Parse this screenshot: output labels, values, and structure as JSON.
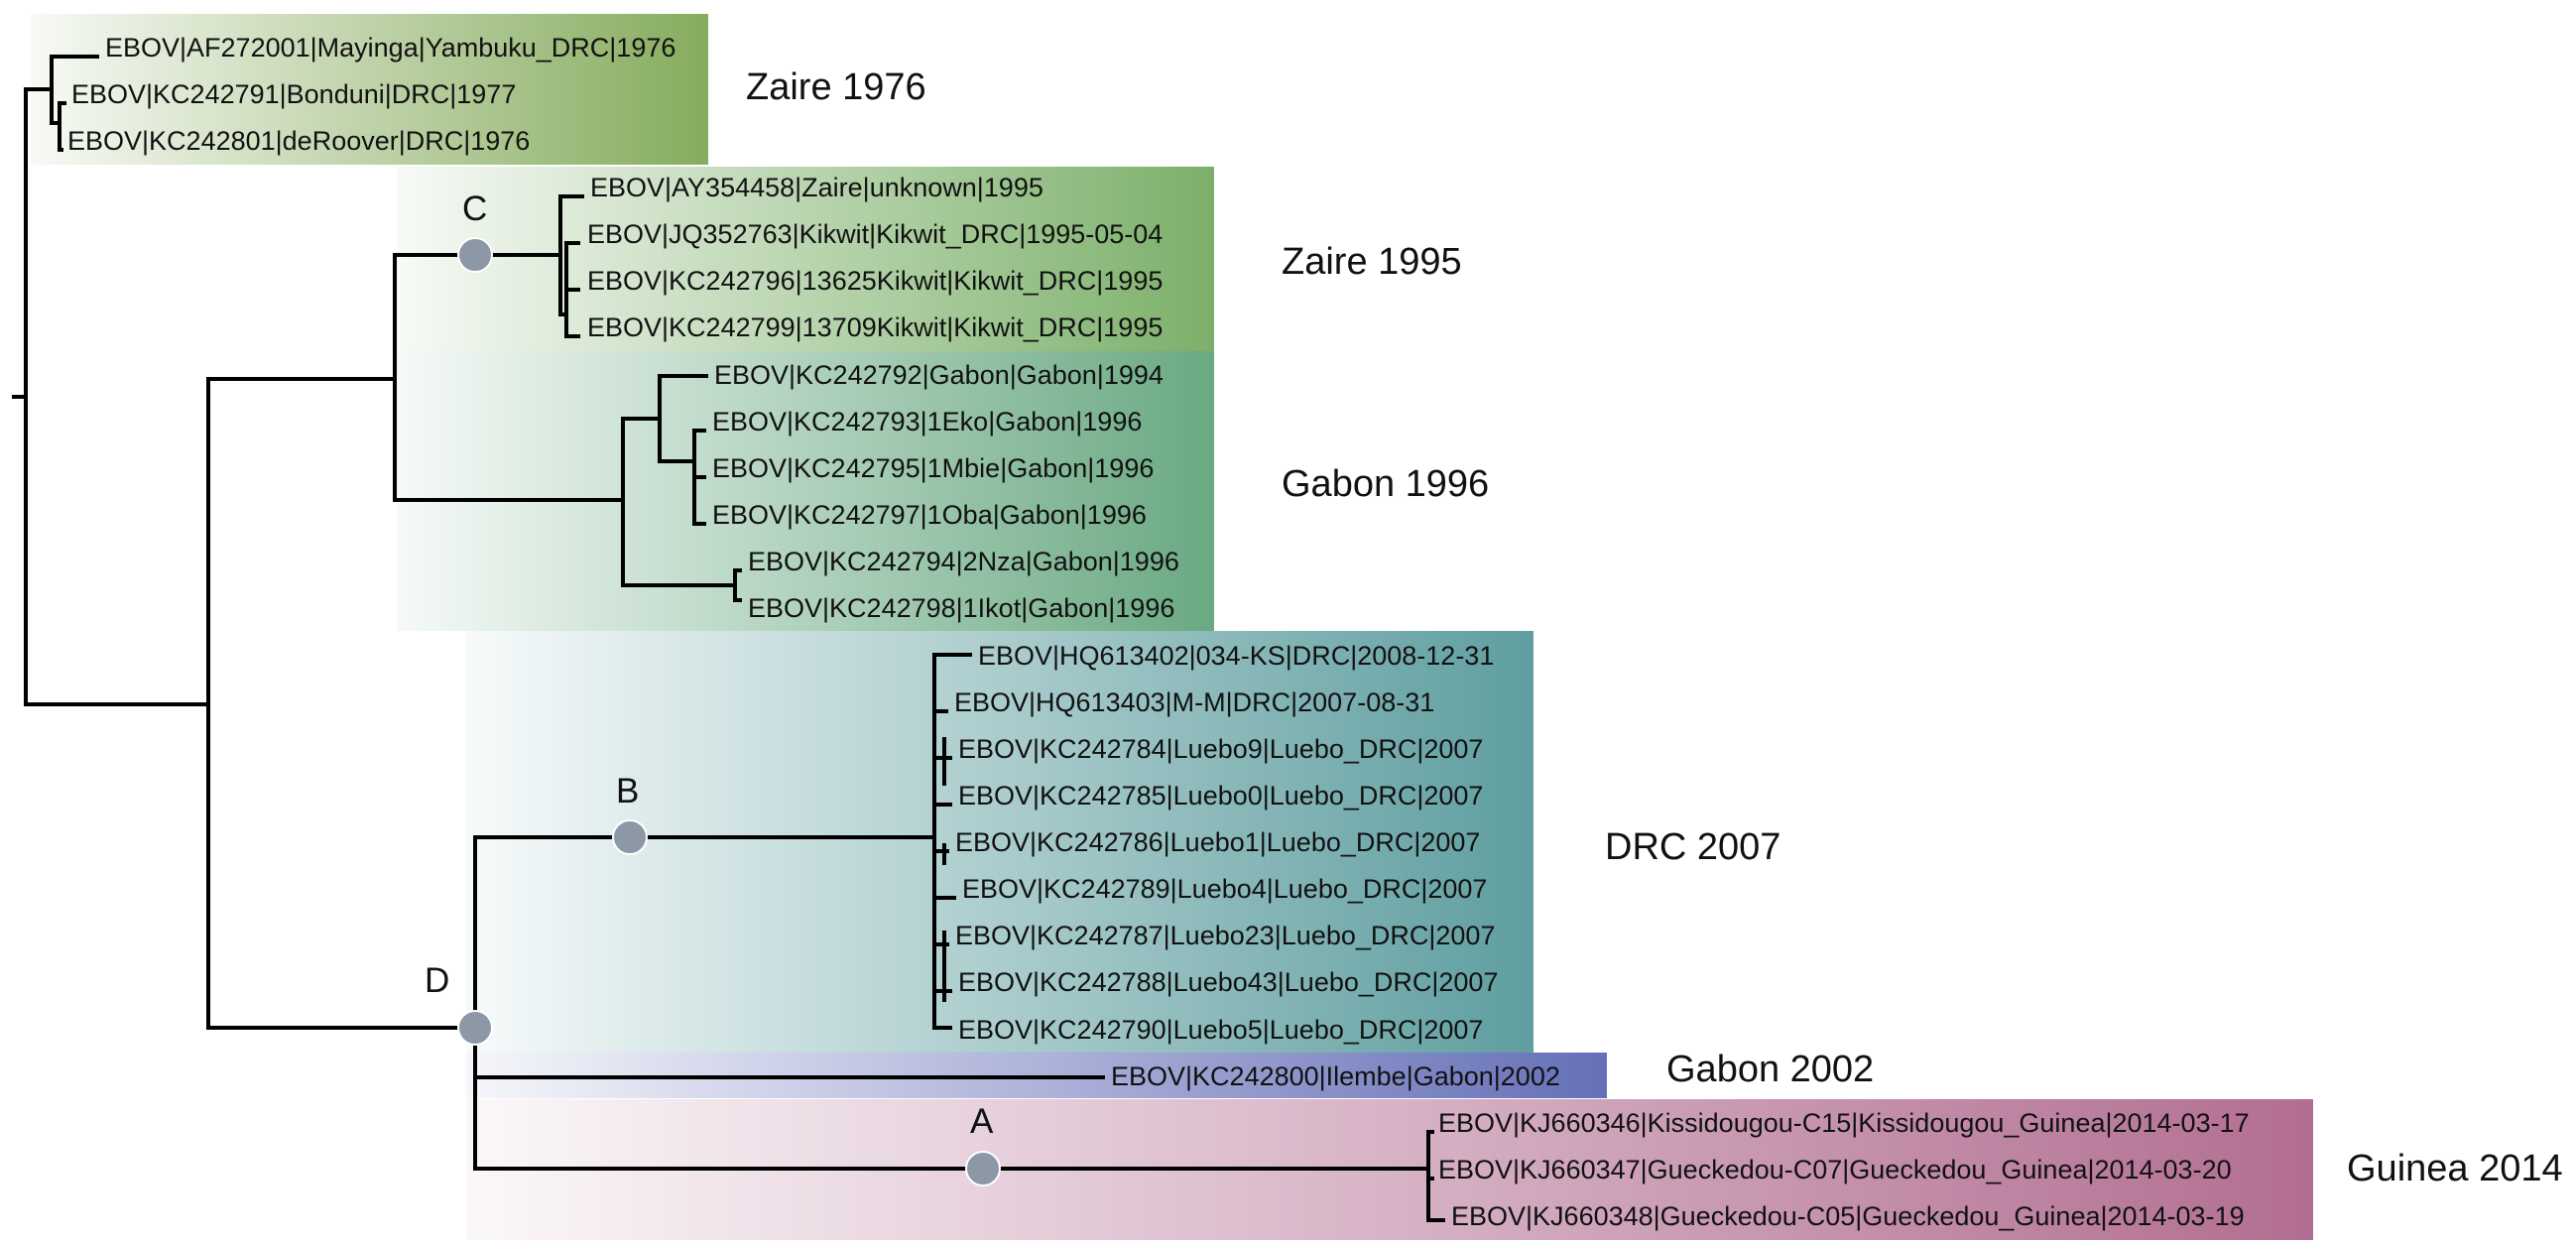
{
  "colors": {
    "zaire_1976": "#86ac5e",
    "zaire_1995": "#7cb06a",
    "gabon_1996": "#6aa982",
    "drc_2007": "#5f9ea0",
    "gabon_2002": "#6570b8",
    "guinea_2014": "#b26e92",
    "node_dot": "#8c98a6",
    "branch": "#000000"
  },
  "clades": [
    {
      "id": "zaire_1976",
      "label": "Zaire 1976"
    },
    {
      "id": "zaire_1995",
      "label": "Zaire 1995"
    },
    {
      "id": "gabon_1996",
      "label": "Gabon 1996"
    },
    {
      "id": "drc_2007",
      "label": "DRC 2007"
    },
    {
      "id": "gabon_2002",
      "label": "Gabon 2002"
    },
    {
      "id": "guinea_2014",
      "label": "Guinea 2014"
    }
  ],
  "nodes": [
    {
      "id": "A",
      "label": "A"
    },
    {
      "id": "B",
      "label": "B"
    },
    {
      "id": "C",
      "label": "C"
    },
    {
      "id": "D",
      "label": "D"
    }
  ],
  "taxa": [
    "EBOV|AF272001|Mayinga|Yambuku_DRC|1976",
    "EBOV|KC242791|Bonduni|DRC|1977",
    "EBOV|KC242801|deRoover|DRC|1976",
    "EBOV|AY354458|Zaire|unknown|1995",
    "EBOV|JQ352763|Kikwit|Kikwit_DRC|1995-05-04",
    "EBOV|KC242796|13625Kikwit|Kikwit_DRC|1995",
    "EBOV|KC242799|13709Kikwit|Kikwit_DRC|1995",
    "EBOV|KC242792|Gabon|Gabon|1994",
    "EBOV|KC242793|1Eko|Gabon|1996",
    "EBOV|KC242795|1Mbie|Gabon|1996",
    "EBOV|KC242797|1Oba|Gabon|1996",
    "EBOV|KC242794|2Nza|Gabon|1996",
    "EBOV|KC242798|1Ikot|Gabon|1996",
    "EBOV|HQ613402|034-KS|DRC|2008-12-31",
    "EBOV|HQ613403|M-M|DRC|2007-08-31",
    "EBOV|KC242784|Luebo9|Luebo_DRC|2007",
    "EBOV|KC242785|Luebo0|Luebo_DRC|2007",
    "EBOV|KC242786|Luebo1|Luebo_DRC|2007",
    "EBOV|KC242789|Luebo4|Luebo_DRC|2007",
    "EBOV|KC242787|Luebo23|Luebo_DRC|2007",
    "EBOV|KC242788|Luebo43|Luebo_DRC|2007",
    "EBOV|KC242790|Luebo5|Luebo_DRC|2007",
    "EBOV|KC242800|Ilembe|Gabon|2002",
    "EBOV|KJ660346|Kissidougou-C15|Kissidougou_Guinea|2014-03-17",
    "EBOV|KJ660347|Gueckedou-C07|Gueckedou_Guinea|2014-03-20",
    "EBOV|KJ660348|Gueckedou-C05|Gueckedou_Guinea|2014-03-19"
  ]
}
